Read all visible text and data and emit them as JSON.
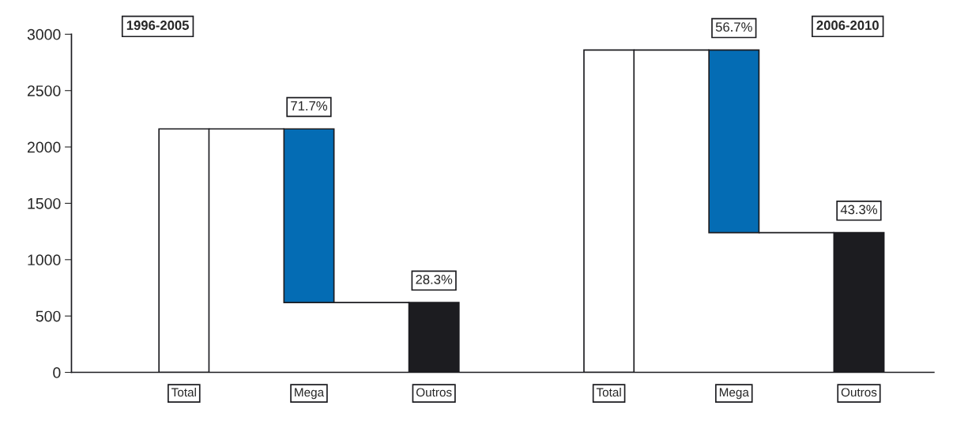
{
  "chart_data": {
    "type": "bar",
    "categories": [
      "Total",
      "Mega",
      "Outros",
      "Total",
      "Mega",
      "Outros"
    ],
    "values": [
      2160,
      1540,
      620,
      2860,
      1620,
      1240
    ],
    "base": [
      0,
      620,
      0,
      0,
      1240,
      0
    ],
    "colors": [
      "#ffffff",
      "#046cb4",
      "#1c1c20",
      "#ffffff",
      "#046cb4",
      "#1c1c20"
    ],
    "annotations": [
      "1996-2005",
      "2006-2010",
      "71.7%",
      "28.3%",
      "56.7%",
      "43.3%"
    ],
    "ylim": [
      0,
      3000
    ],
    "yticks": [
      0,
      500,
      1000,
      1500,
      2000,
      2500,
      3000
    ],
    "grid": false,
    "legend": false
  }
}
